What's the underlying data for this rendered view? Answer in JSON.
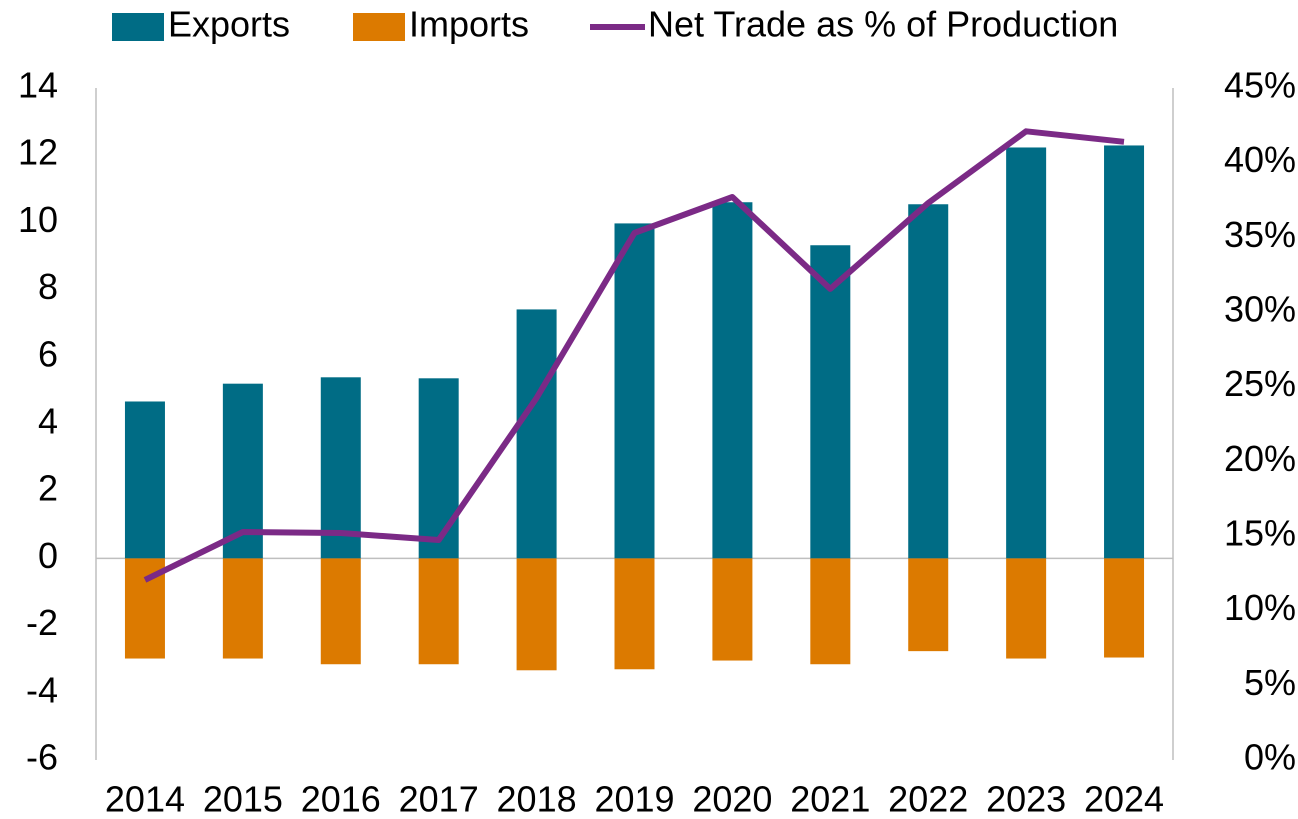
{
  "chart_data": {
    "type": "bar_line",
    "categories": [
      "2014",
      "2015",
      "2016",
      "2017",
      "2018",
      "2019",
      "2020",
      "2021",
      "2022",
      "2023",
      "2024"
    ],
    "series": [
      {
        "name": "Exports",
        "type": "bar",
        "color": "#006c85",
        "values": [
          4.67,
          5.2,
          5.39,
          5.36,
          7.41,
          9.97,
          10.6,
          9.32,
          10.54,
          12.23,
          12.29
        ]
      },
      {
        "name": "Imports",
        "type": "bar",
        "color": "#dc7a00",
        "values": [
          -2.98,
          -2.98,
          -3.15,
          -3.15,
          -3.33,
          -3.3,
          -3.04,
          -3.15,
          -2.76,
          -2.98,
          -2.95
        ]
      },
      {
        "name": "Net Trade as % of Production",
        "type": "line",
        "axis": "y2",
        "color": "#7b2a86",
        "values": [
          12.06,
          15.27,
          15.2,
          14.73,
          24.25,
          35.3,
          37.7,
          31.55,
          37.3,
          42.1,
          41.4
        ]
      }
    ],
    "ylim": [
      -6,
      14
    ],
    "yticks": [
      -6,
      -4,
      -2,
      0,
      2,
      4,
      6,
      8,
      10,
      12,
      14
    ],
    "y2lim": [
      0,
      45
    ],
    "y2ticks": [
      {
        "value": 0,
        "label": "0%"
      },
      {
        "value": 5,
        "label": "5%"
      },
      {
        "value": 10,
        "label": "10%"
      },
      {
        "value": 15,
        "label": "15%"
      },
      {
        "value": 20,
        "label": "20%"
      },
      {
        "value": 25,
        "label": "25%"
      },
      {
        "value": 30,
        "label": "30%"
      },
      {
        "value": 35,
        "label": "35%"
      },
      {
        "value": 40,
        "label": "40%"
      },
      {
        "value": 45,
        "label": "45%"
      }
    ],
    "grid": false,
    "legend": "top"
  }
}
